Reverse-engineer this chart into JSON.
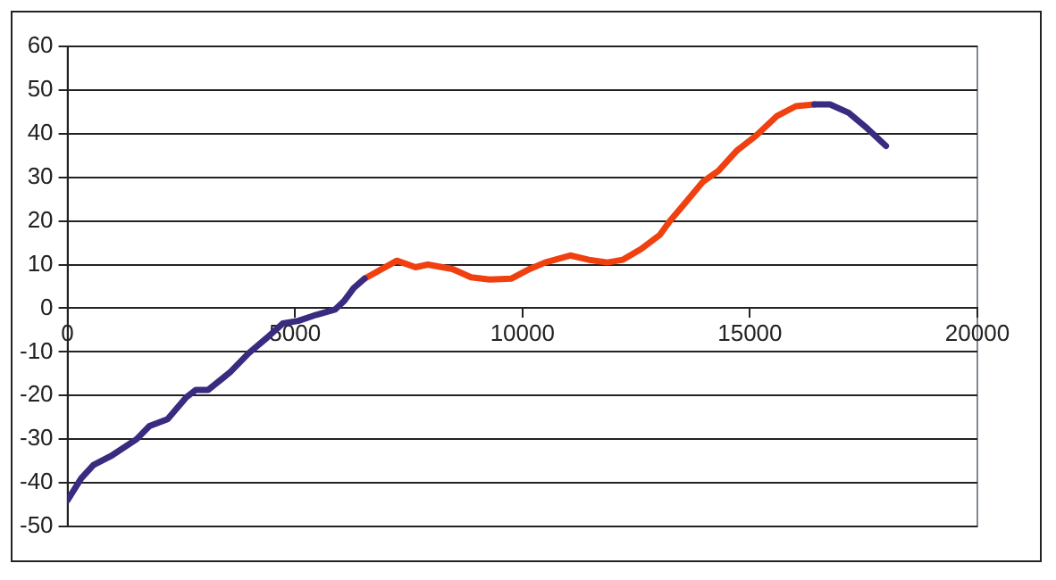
{
  "chart_data": {
    "type": "line",
    "xlim": [
      0,
      20000
    ],
    "xticks": [
      0,
      5000,
      10000,
      15000,
      20000
    ],
    "ylim": [
      -50,
      60
    ],
    "yticks": [
      -50,
      -40,
      -30,
      -20,
      -10,
      0,
      10,
      20,
      30,
      40,
      50,
      60
    ],
    "grid": "y",
    "legend": false,
    "marker": "none",
    "line_style": "solid",
    "series": [
      {
        "color": "#3a2a80",
        "x": [
          0,
          300,
          570,
          980,
          1520,
          1800,
          2200,
          2610,
          2820,
          3090,
          3570,
          3980,
          4390,
          4730,
          5070,
          5470,
          5880,
          6090,
          6290,
          6530,
          null,
          16420,
          16760,
          17170,
          17580,
          17990
        ],
        "values": [
          -44,
          -39,
          -35.9,
          -33.7,
          -30,
          -27,
          -25.4,
          -20.4,
          -18.7,
          -18.7,
          -14.7,
          -10.3,
          -6.7,
          -3.5,
          -2.9,
          -1.5,
          -0.3,
          1.8,
          4.6,
          6.8,
          null,
          46.7,
          46.7,
          44.8,
          41.2,
          37.2
        ]
      },
      {
        "color": "#f04010",
        "x": [
          6530,
          7240,
          7650,
          7920,
          8460,
          8870,
          9280,
          9760,
          10160,
          10500,
          11050,
          11460,
          11870,
          12200,
          12610,
          13020,
          13220,
          13630,
          13970,
          14310,
          14720,
          15130,
          15600,
          16010,
          16420
        ],
        "values": [
          6.8,
          10.9,
          9.4,
          10,
          9,
          7.1,
          6.6,
          6.8,
          9,
          10.5,
          12.1,
          11.1,
          10.5,
          11.1,
          13.6,
          16.8,
          19.7,
          24.8,
          29,
          31.5,
          36.2,
          39.5,
          44.1,
          46.3,
          46.7
        ]
      }
    ]
  }
}
